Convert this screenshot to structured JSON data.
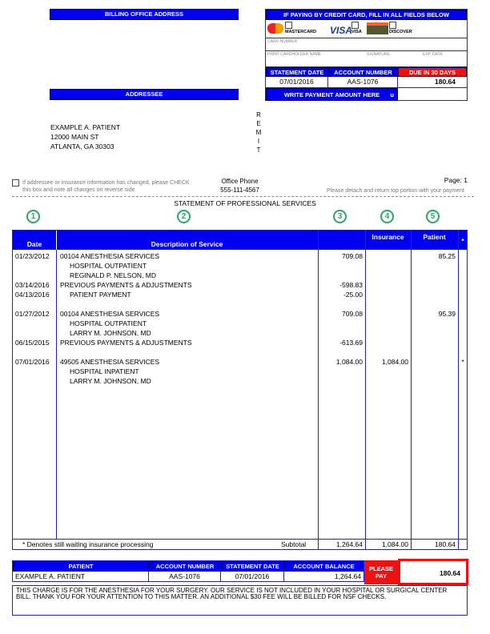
{
  "billing_office_header": "BILLING OFFICE ADDRESS",
  "addressee_header": "ADDRESSEE",
  "remit": "R\nE\nM\nI\nT",
  "addressee": {
    "name": "EXAMPLE A. PATIENT",
    "street": "12000 MAIN ST",
    "city": "ATLANTA, GA 30303"
  },
  "credit_card": {
    "header": "IF PAYING BY CREDIT CARD, FILL IN ALL FIELDS BELOW",
    "mastercard": "MASTERCARD",
    "visa_logo": "VISA",
    "visa": "VISA",
    "discover": "DISCOVER",
    "card_number": "CARD NUMBER",
    "cardholder": "PRINT CARDHOLDER NAME",
    "signature": "SIGNATURE",
    "exp": "EXP. DATE"
  },
  "remit_summary": {
    "statement_date_label": "STATEMENT DATE",
    "account_number_label": "ACCOUNT NUMBER",
    "due_label": "DUE IN 30 DAYS",
    "statement_date": "07/01/2016",
    "account_number": "AAS-1076",
    "due": "180.64",
    "write_payment": "WRITE PAYMENT AMOUNT HERE",
    "arrow": "u"
  },
  "change_notice": "If addressee or insurance information has changed, please CHECK this box and note all changes on reverse side.",
  "office_phone_label": "Office Phone",
  "office_phone": "555-111-4567",
  "page": "Page: 1",
  "detach": "Please detach and return top portion with your payment",
  "statement_title": "STATEMENT OF PROFESSIONAL SERVICES",
  "circles": [
    "1",
    "2",
    "3",
    "4",
    "5"
  ],
  "table": {
    "headers": {
      "date": "Date",
      "description": "Description of Service",
      "charges": "",
      "insurance": "Insurance",
      "patient": "Patient",
      "star": "*"
    },
    "lines": [
      {
        "date": "01/23/2012",
        "desc": "00104 ANESTHESIA SERVICES",
        "charge": "709.08",
        "ins": "",
        "pat": "85.25",
        "star": ""
      },
      {
        "date": "",
        "desc": "  HOSPITAL OUTPATIENT",
        "charge": "",
        "ins": "",
        "pat": "",
        "star": ""
      },
      {
        "date": "",
        "desc": "  REGINALD P. NELSON, MD",
        "charge": "",
        "ins": "",
        "pat": "",
        "star": ""
      },
      {
        "date": "03/14/2016",
        "desc": "PREVIOUS PAYMENTS & ADJUSTMENTS",
        "charge": "-598.83",
        "ins": "",
        "pat": "",
        "star": ""
      },
      {
        "date": "04/13/2016",
        "desc": "  PATIENT PAYMENT",
        "charge": "-25.00",
        "ins": "",
        "pat": "",
        "star": ""
      },
      {
        "date": "",
        "desc": "",
        "charge": "",
        "ins": "",
        "pat": "",
        "star": ""
      },
      {
        "date": "01/27/2012",
        "desc": "00104 ANESTHESIA SERVICES",
        "charge": "709.08",
        "ins": "",
        "pat": "95.39",
        "star": ""
      },
      {
        "date": "",
        "desc": "  HOSPITAL OUTPATIENT",
        "charge": "",
        "ins": "",
        "pat": "",
        "star": ""
      },
      {
        "date": "",
        "desc": "  LARRY M. JOHNSON, MD",
        "charge": "",
        "ins": "",
        "pat": "",
        "star": ""
      },
      {
        "date": "06/15/2015",
        "desc": "PREVIOUS PAYMENTS & ADJUSTMENTS",
        "charge": "-613.69",
        "ins": "",
        "pat": "",
        "star": ""
      },
      {
        "date": "",
        "desc": "",
        "charge": "",
        "ins": "",
        "pat": "",
        "star": ""
      },
      {
        "date": "07/01/2016",
        "desc": "49505 ANESTHESIA SERVICES",
        "charge": "1,084.00",
        "ins": "1,084.00",
        "pat": "",
        "star": "*"
      },
      {
        "date": "",
        "desc": "  HOSPITAL INPATIENT",
        "charge": "",
        "ins": "",
        "pat": "",
        "star": ""
      },
      {
        "date": "",
        "desc": "  LARRY M. JOHNSON, MD",
        "charge": "",
        "ins": "",
        "pat": "",
        "star": ""
      }
    ],
    "footnote": "* Denotes still waiting insurance processing",
    "subtotal_label": "Subtotal",
    "subtotal_charges": "1,264.64",
    "subtotal_insurance": "1,084.00",
    "subtotal_patient": "180.64"
  },
  "summary": {
    "patient_label": "PATIENT",
    "account_label": "ACCOUNT NUMBER",
    "date_label": "STATEMENT DATE",
    "balance_label": "ACCOUNT BALANCE",
    "patient": "EXAMPLE A. PATIENT",
    "account": "AAS-1076",
    "date": "07/01/2016",
    "balance": "1,264.64",
    "please_pay": "PLEASE PAY",
    "amount": "180.64"
  },
  "message": "THIS CHARGE IS FOR THE ANESTHESIA FOR YOUR SURGERY.  OUR SERVICE IS NOT INCLUDED IN YOUR HOSPITAL OR SURGICAL CENTER BILL.  THANK YOU FOR YOUR ATTENTION TO THIS MATTER.  AN ADDITIONAL $30 FEE WILL BE BILLED FOR NSF CHECKS.",
  "colors": {
    "header_blue": "#0000ee",
    "due_red": "#ee1111",
    "circle_green": "#2aa86a"
  }
}
